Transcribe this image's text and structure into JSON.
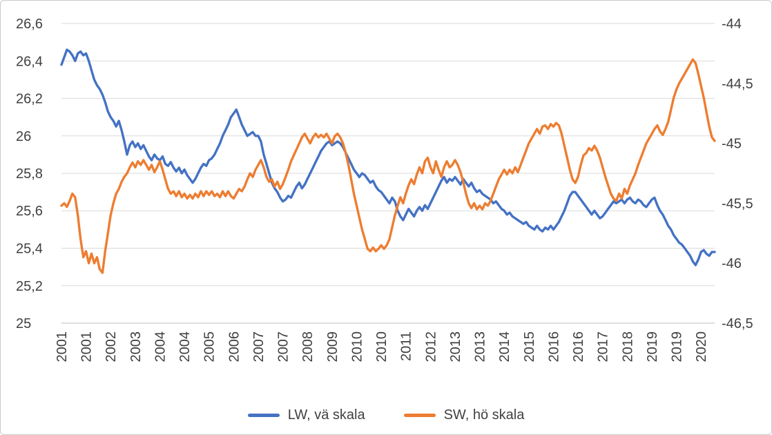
{
  "chart_data": {
    "type": "line",
    "title": "",
    "grid": "horizontal",
    "colors": {
      "grid": "#d9d9d9",
      "axis_line": "#bfbfbf",
      "axis_text": "#404040"
    },
    "x": {
      "start_year": 2001,
      "end_year": 2020,
      "frequency": "monthly",
      "n_points": 240,
      "tick_every": 9,
      "tick_labels": [
        "2001",
        "2001",
        "2002",
        "2003",
        "2004",
        "2004",
        "2005",
        "2006",
        "2007",
        "2007",
        "2008",
        "2009",
        "2010",
        "2010",
        "2011",
        "2012",
        "2013",
        "2013",
        "2014",
        "2015",
        "2016",
        "2016",
        "2017",
        "2018",
        "2019",
        "2019",
        "2020"
      ]
    },
    "axes": {
      "left": {
        "min": 25,
        "max": 26.6,
        "tick_step": 0.2,
        "tick_values": [
          26.6,
          26.4,
          26.2,
          26.0,
          25.8,
          25.6,
          25.4,
          25.2,
          25.0
        ],
        "tick_labels": [
          "26,6",
          "26,4",
          "26,2",
          "26",
          "25,8",
          "25,6",
          "25,4",
          "25,2",
          "25"
        ]
      },
      "right": {
        "min": -46.5,
        "max": -44,
        "tick_step": 0.5,
        "tick_values": [
          -44,
          -44.5,
          -45,
          -45.5,
          -46,
          -46.5
        ],
        "tick_labels": [
          "-44",
          "-44,5",
          "-45",
          "-45,5",
          "-46",
          "-46,5"
        ]
      }
    },
    "legend": {
      "position": "bottom"
    },
    "series": [
      {
        "id": "lw",
        "name": "LW, vä skala",
        "axis": "left",
        "color": "#4472c4",
        "values": [
          26.38,
          26.42,
          26.46,
          26.45,
          26.43,
          26.4,
          26.44,
          26.45,
          26.43,
          26.44,
          26.4,
          26.35,
          26.3,
          26.27,
          26.25,
          26.22,
          26.18,
          26.13,
          26.1,
          26.08,
          26.05,
          26.08,
          26.03,
          25.97,
          25.9,
          25.95,
          25.97,
          25.94,
          25.96,
          25.93,
          25.95,
          25.92,
          25.89,
          25.87,
          25.9,
          25.88,
          25.87,
          25.89,
          25.85,
          25.84,
          25.86,
          25.83,
          25.81,
          25.83,
          25.8,
          25.82,
          25.79,
          25.77,
          25.75,
          25.77,
          25.8,
          25.83,
          25.85,
          25.84,
          25.87,
          25.88,
          25.9,
          25.93,
          25.96,
          26.0,
          26.03,
          26.06,
          26.1,
          26.12,
          26.14,
          26.1,
          26.06,
          26.03,
          26.0,
          26.01,
          26.02,
          26.0,
          26.0,
          25.97,
          25.9,
          25.85,
          25.8,
          25.75,
          25.72,
          25.7,
          25.67,
          25.65,
          25.66,
          25.68,
          25.67,
          25.7,
          25.73,
          25.75,
          25.72,
          25.74,
          25.77,
          25.8,
          25.83,
          25.86,
          25.89,
          25.92,
          25.94,
          25.96,
          25.97,
          25.95,
          25.96,
          25.97,
          25.96,
          25.94,
          25.91,
          25.88,
          25.85,
          25.82,
          25.8,
          25.78,
          25.8,
          25.79,
          25.77,
          25.75,
          25.76,
          25.73,
          25.71,
          25.7,
          25.68,
          25.66,
          25.64,
          25.67,
          25.65,
          25.6,
          25.57,
          25.55,
          25.58,
          25.61,
          25.59,
          25.57,
          25.6,
          25.62,
          25.6,
          25.63,
          25.61,
          25.64,
          25.67,
          25.7,
          25.73,
          25.76,
          25.78,
          25.75,
          25.77,
          25.76,
          25.78,
          25.76,
          25.74,
          25.77,
          25.75,
          25.73,
          25.75,
          25.72,
          25.7,
          25.71,
          25.69,
          25.68,
          25.67,
          25.66,
          25.64,
          25.65,
          25.63,
          25.61,
          25.6,
          25.58,
          25.59,
          25.57,
          25.56,
          25.55,
          25.54,
          25.53,
          25.54,
          25.52,
          25.51,
          25.5,
          25.52,
          25.5,
          25.49,
          25.51,
          25.5,
          25.52,
          25.5,
          25.52,
          25.54,
          25.57,
          25.6,
          25.64,
          25.68,
          25.7,
          25.7,
          25.68,
          25.66,
          25.64,
          25.62,
          25.6,
          25.58,
          25.6,
          25.58,
          25.56,
          25.57,
          25.59,
          25.61,
          25.63,
          25.65,
          25.64,
          25.65,
          25.66,
          25.64,
          25.66,
          25.67,
          25.65,
          25.64,
          25.66,
          25.65,
          25.63,
          25.62,
          25.64,
          25.66,
          25.67,
          25.63,
          25.6,
          25.58,
          25.55,
          25.52,
          25.5,
          25.47,
          25.45,
          25.43,
          25.42,
          25.4,
          25.38,
          25.36,
          25.33,
          25.31,
          25.34,
          25.38,
          25.39,
          25.37,
          25.36,
          25.38,
          25.38
        ]
      },
      {
        "id": "sw",
        "name": "SW, hö skala",
        "axis": "right",
        "color": "#ed7d31",
        "values": [
          -45.52,
          -45.5,
          -45.53,
          -45.48,
          -45.42,
          -45.45,
          -45.6,
          -45.8,
          -45.95,
          -45.9,
          -46.0,
          -45.92,
          -46.0,
          -45.95,
          -46.05,
          -46.08,
          -45.9,
          -45.75,
          -45.6,
          -45.5,
          -45.42,
          -45.38,
          -45.32,
          -45.28,
          -45.25,
          -45.2,
          -45.16,
          -45.2,
          -45.15,
          -45.18,
          -45.14,
          -45.18,
          -45.22,
          -45.18,
          -45.24,
          -45.2,
          -45.15,
          -45.22,
          -45.3,
          -45.38,
          -45.42,
          -45.4,
          -45.44,
          -45.4,
          -45.45,
          -45.42,
          -45.46,
          -45.43,
          -45.46,
          -45.42,
          -45.45,
          -45.4,
          -45.44,
          -45.4,
          -45.43,
          -45.4,
          -45.44,
          -45.42,
          -45.45,
          -45.4,
          -45.44,
          -45.4,
          -45.44,
          -45.46,
          -45.42,
          -45.38,
          -45.4,
          -45.36,
          -45.3,
          -45.25,
          -45.28,
          -45.22,
          -45.18,
          -45.14,
          -45.2,
          -45.28,
          -45.32,
          -45.3,
          -45.36,
          -45.32,
          -45.38,
          -45.34,
          -45.28,
          -45.22,
          -45.15,
          -45.1,
          -45.05,
          -45.0,
          -44.95,
          -44.92,
          -44.96,
          -45.0,
          -44.95,
          -44.92,
          -44.95,
          -44.93,
          -44.95,
          -44.92,
          -44.96,
          -45.0,
          -44.94,
          -44.92,
          -44.95,
          -45.0,
          -45.08,
          -45.18,
          -45.3,
          -45.42,
          -45.52,
          -45.62,
          -45.72,
          -45.8,
          -45.88,
          -45.9,
          -45.87,
          -45.9,
          -45.88,
          -45.85,
          -45.88,
          -45.85,
          -45.8,
          -45.7,
          -45.6,
          -45.52,
          -45.45,
          -45.5,
          -45.42,
          -45.35,
          -45.3,
          -45.34,
          -45.26,
          -45.2,
          -45.25,
          -45.15,
          -45.12,
          -45.2,
          -45.25,
          -45.15,
          -45.22,
          -45.28,
          -45.2,
          -45.15,
          -45.2,
          -45.18,
          -45.14,
          -45.18,
          -45.24,
          -45.32,
          -45.42,
          -45.5,
          -45.54,
          -45.5,
          -45.55,
          -45.52,
          -45.55,
          -45.5,
          -45.52,
          -45.48,
          -45.42,
          -45.36,
          -45.3,
          -45.26,
          -45.22,
          -45.26,
          -45.22,
          -45.25,
          -45.2,
          -45.24,
          -45.18,
          -45.12,
          -45.06,
          -45.0,
          -44.96,
          -44.92,
          -44.88,
          -44.92,
          -44.86,
          -44.85,
          -44.88,
          -44.84,
          -44.86,
          -44.83,
          -44.85,
          -44.92,
          -45.02,
          -45.12,
          -45.22,
          -45.3,
          -45.33,
          -45.28,
          -45.18,
          -45.1,
          -45.08,
          -45.04,
          -45.06,
          -45.02,
          -45.06,
          -45.12,
          -45.2,
          -45.28,
          -45.35,
          -45.42,
          -45.46,
          -45.48,
          -45.42,
          -45.46,
          -45.38,
          -45.42,
          -45.35,
          -45.3,
          -45.25,
          -45.18,
          -45.12,
          -45.06,
          -45.0,
          -44.96,
          -44.92,
          -44.88,
          -44.85,
          -44.9,
          -44.93,
          -44.88,
          -44.82,
          -44.72,
          -44.62,
          -44.55,
          -44.5,
          -44.46,
          -44.42,
          -44.38,
          -44.34,
          -44.3,
          -44.33,
          -44.42,
          -44.52,
          -44.62,
          -44.74,
          -44.86,
          -44.95,
          -44.98
        ]
      }
    ]
  }
}
